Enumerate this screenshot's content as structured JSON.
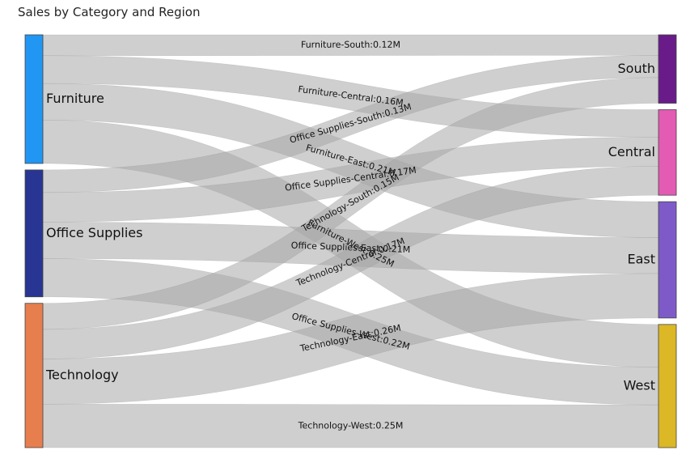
{
  "title": "Sales by Category and Region",
  "chart_data": {
    "type": "sankey",
    "title": "Sales by Category and Region",
    "sources": [
      {
        "name": "Furniture",
        "color": "#2196f3"
      },
      {
        "name": "Office Supplies",
        "color": "#283593"
      },
      {
        "name": "Technology",
        "color": "#e67e4d"
      }
    ],
    "targets": [
      {
        "name": "South",
        "color": "#6a1b8a"
      },
      {
        "name": "Central",
        "color": "#e35bb3"
      },
      {
        "name": "East",
        "color": "#7e5ac8"
      },
      {
        "name": "West",
        "color": "#dcb726"
      }
    ],
    "link_color": "#a8a8a8",
    "links": [
      {
        "source": "Furniture",
        "target": "South",
        "value": 0.12,
        "label": "Furniture-South:0.12M"
      },
      {
        "source": "Furniture",
        "target": "Central",
        "value": 0.16,
        "label": "Furniture-Central:0.16M"
      },
      {
        "source": "Furniture",
        "target": "East",
        "value": 0.21,
        "label": "Furniture-East:0.21M"
      },
      {
        "source": "Furniture",
        "target": "West",
        "value": 0.25,
        "label": "Furniture-West:0.25M"
      },
      {
        "source": "Office Supplies",
        "target": "South",
        "value": 0.13,
        "label": "Office Supplies-South:0.13M"
      },
      {
        "source": "Office Supplies",
        "target": "Central",
        "value": 0.17,
        "label": "Office Supplies-Central:0.17M"
      },
      {
        "source": "Office Supplies",
        "target": "East",
        "value": 0.21,
        "label": "Office Supplies-East:0.21M"
      },
      {
        "source": "Office Supplies",
        "target": "West",
        "value": 0.22,
        "label": "Office Supplies-West:0.22M"
      },
      {
        "source": "Technology",
        "target": "South",
        "value": 0.15,
        "label": "Technology-South:0.15M"
      },
      {
        "source": "Technology",
        "target": "Central",
        "value": 0.17,
        "label": "Technology-Central:0.17M"
      },
      {
        "source": "Technology",
        "target": "East",
        "value": 0.26,
        "label": "Technology-East:0.26M"
      },
      {
        "source": "Technology",
        "target": "West",
        "value": 0.25,
        "label": "Technology-West:0.25M"
      }
    ]
  }
}
